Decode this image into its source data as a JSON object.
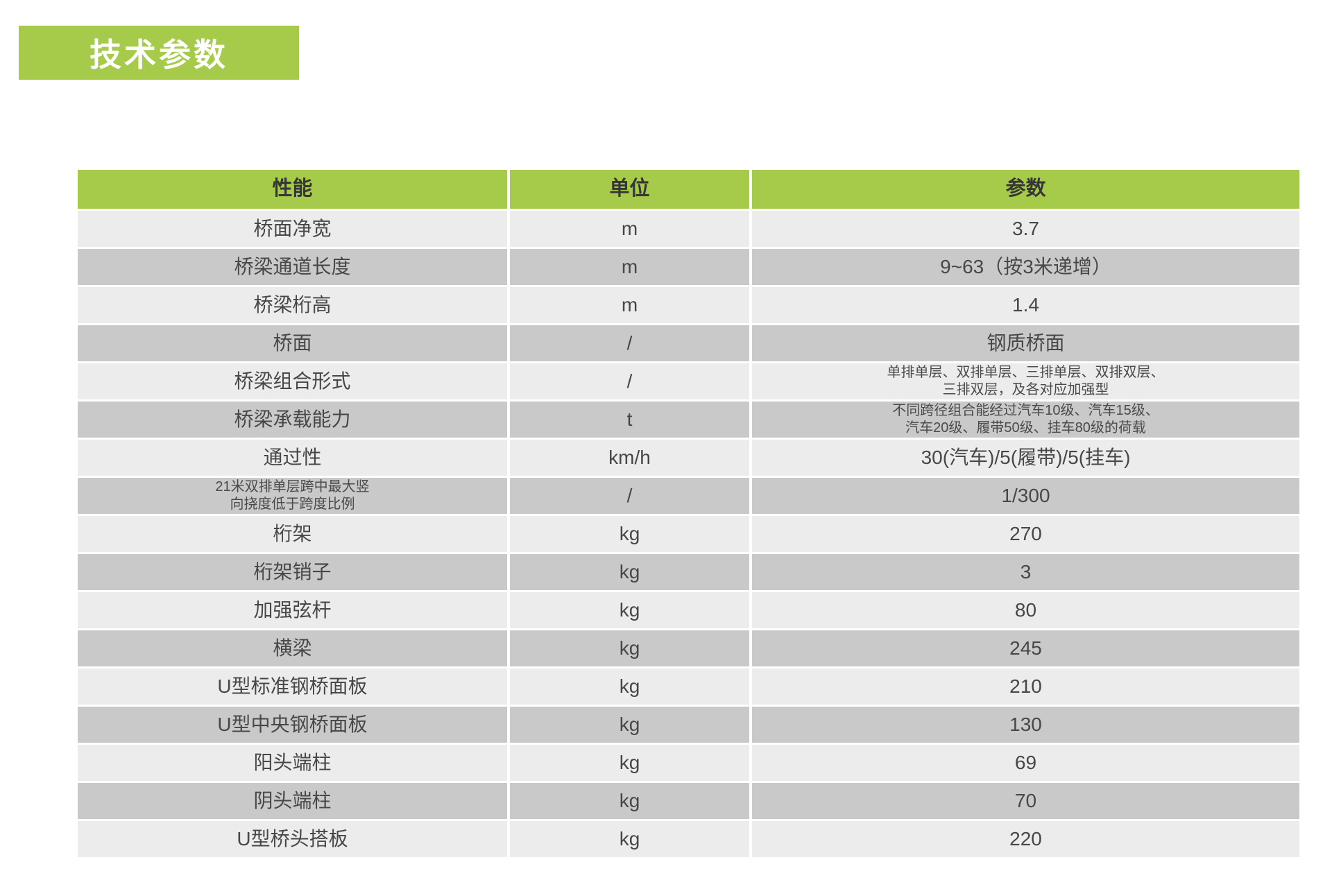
{
  "page_title": "技术参数",
  "colors": {
    "accent_green": "#a6cb4a",
    "row_light": "#ececec",
    "row_dark": "#c9c9c9",
    "title_text": "#ffffff",
    "cell_text": "#474747"
  },
  "table": {
    "headers": [
      "性能",
      "单位",
      "参数"
    ],
    "rows": [
      {
        "name": "桥面净宽",
        "unit": "m",
        "value": "3.7"
      },
      {
        "name": "桥梁通道长度",
        "unit": "m",
        "value": "9~63（按3米递增）"
      },
      {
        "name": "桥梁桁高",
        "unit": "m",
        "value": "1.4"
      },
      {
        "name": "桥面",
        "unit": "/",
        "value": "钢质桥面"
      },
      {
        "name": "桥梁组合形式",
        "unit": "/",
        "value_lines": [
          "单排单层、双排单层、三排单层、双排双层、",
          "三排双层，及各对应加强型"
        ]
      },
      {
        "name": "桥梁承载能力",
        "unit": "t",
        "value_lines": [
          "不同跨径组合能经过汽车10级、汽车15级、",
          "汽车20级、履带50级、挂车80级的荷载"
        ]
      },
      {
        "name": "通过性",
        "unit": "km/h",
        "value": "30(汽车)/5(履带)/5(挂车)"
      },
      {
        "name_lines": [
          "21米双排单层跨中最大竖",
          "向挠度低于跨度比例"
        ],
        "unit": "/",
        "value": "1/300"
      },
      {
        "name": "桁架",
        "unit": "kg",
        "value": "270"
      },
      {
        "name": "桁架销子",
        "unit": "kg",
        "value": "3"
      },
      {
        "name": "加强弦杆",
        "unit": "kg",
        "value": "80"
      },
      {
        "name": "横梁",
        "unit": "kg",
        "value": "245"
      },
      {
        "name": "U型标准钢桥面板",
        "unit": "kg",
        "value": "210"
      },
      {
        "name": "U型中央钢桥面板",
        "unit": "kg",
        "value": "130"
      },
      {
        "name": "阳头端柱",
        "unit": "kg",
        "value": "69"
      },
      {
        "name": "阴头端柱",
        "unit": "kg",
        "value": "70"
      },
      {
        "name": "U型桥头搭板",
        "unit": "kg",
        "value": "220"
      }
    ]
  }
}
